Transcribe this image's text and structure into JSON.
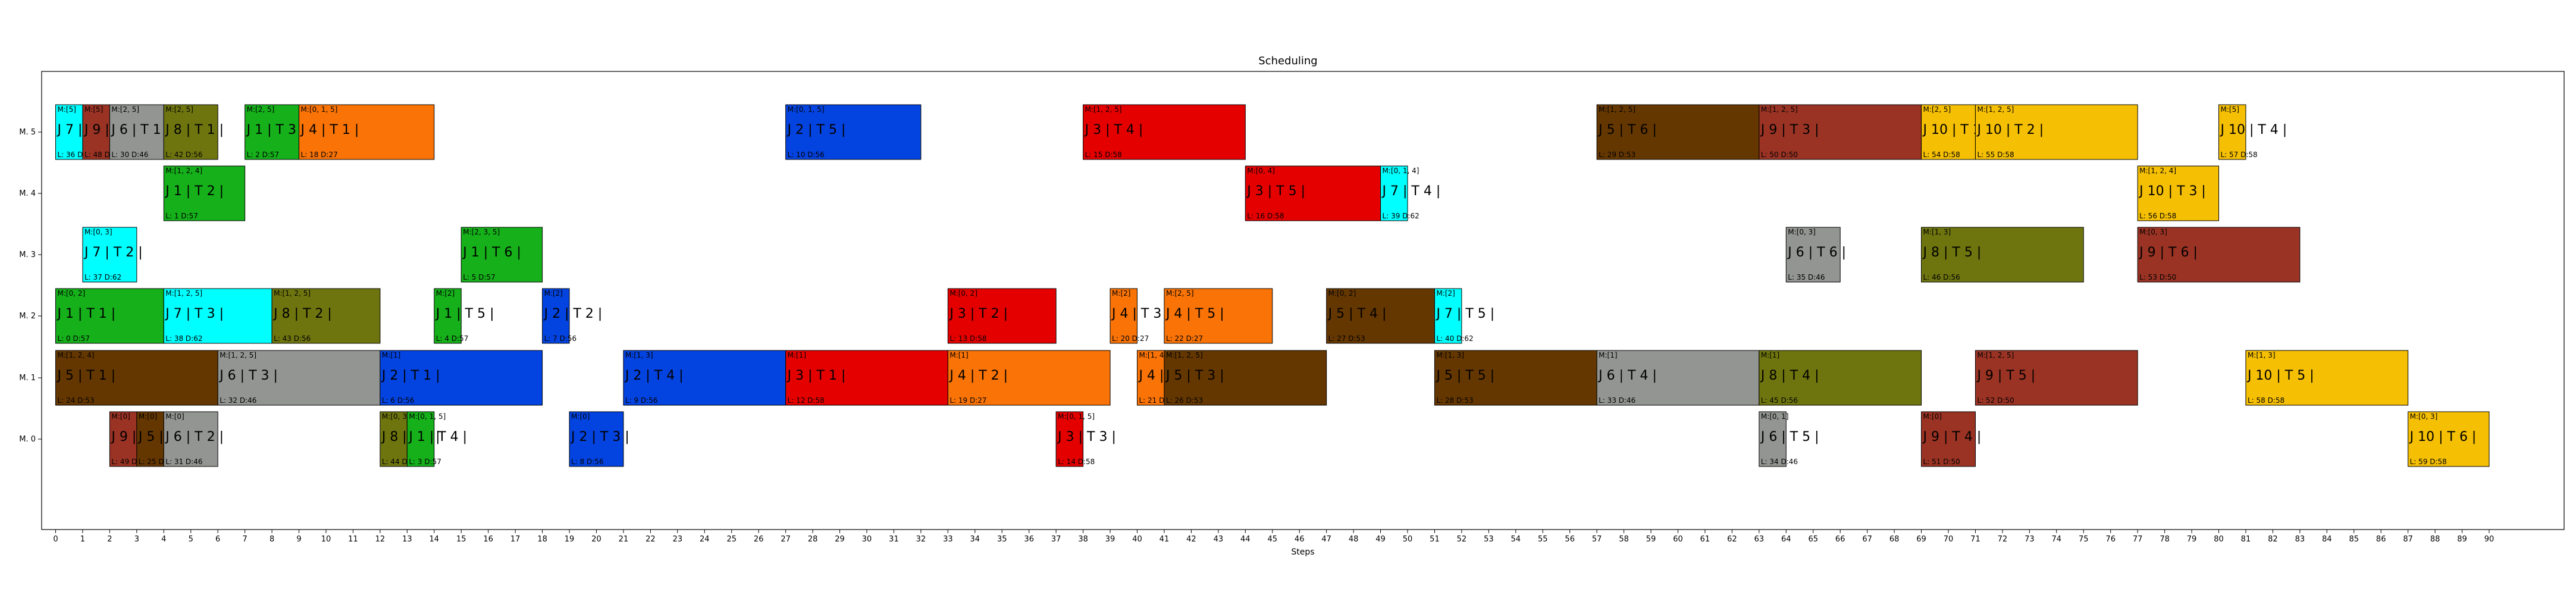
{
  "chart_data": {
    "type": "gantt",
    "title": "Scheduling",
    "xlabel": "Steps",
    "ylabel": "",
    "xlim": [
      -1,
      94
    ],
    "x_ticks": [
      0,
      1,
      2,
      3,
      4,
      5,
      6,
      7,
      8,
      9,
      10,
      11,
      12,
      13,
      14,
      15,
      16,
      17,
      18,
      19,
      20,
      21,
      22,
      23,
      24,
      25,
      26,
      27,
      28,
      29,
      30,
      31,
      32,
      33,
      34,
      35,
      36,
      37,
      38,
      39,
      40,
      41,
      42,
      43,
      44,
      45,
      46,
      47,
      48,
      49,
      50,
      51,
      52,
      53,
      54,
      55,
      56,
      57,
      58,
      59,
      60,
      61,
      62,
      63,
      64,
      65,
      66,
      67,
      68,
      69,
      70,
      71,
      72,
      73,
      74,
      75,
      76,
      77,
      78,
      79,
      80,
      81,
      82,
      83,
      84,
      85,
      86,
      87,
      88,
      89,
      90
    ],
    "machines": [
      "M. 5",
      "M. 4",
      "M. 3",
      "M. 2",
      "M. 1",
      "M. 0"
    ],
    "grid": false,
    "job_colors": {
      "J 1": "#15b01a",
      "J 2": "#0343df",
      "J 3": "#e50000",
      "J 4": "#f97306",
      "J 5": "#653700",
      "J 6": "#929591",
      "J 7": "#00ffff",
      "J 8": "#6e750e",
      "J 9": "#9a3324",
      "J 10": "#f5bf03"
    },
    "operations": [
      {
        "machine": "M. 5",
        "job": "J 7",
        "task": "T 1",
        "start": 0,
        "end": 1,
        "tag": "M:[5]",
        "meta": "L: 36 D:62"
      },
      {
        "machine": "M. 5",
        "job": "J 9",
        "task": "T 1",
        "start": 1,
        "end": 2,
        "tag": "M:[5]",
        "meta": "L: 48 D:50"
      },
      {
        "machine": "M. 5",
        "job": "J 6",
        "task": "T 1",
        "start": 2,
        "end": 4,
        "tag": "M:[2, 5]",
        "meta": "L: 30 D:46"
      },
      {
        "machine": "M. 5",
        "job": "J 8",
        "task": "T 1",
        "start": 4,
        "end": 6,
        "tag": "M:[2, 5]",
        "meta": "L: 42 D:56"
      },
      {
        "machine": "M. 5",
        "job": "J 1",
        "task": "T 3",
        "start": 7,
        "end": 9,
        "tag": "M:[2, 5]",
        "meta": "L: 2 D:57"
      },
      {
        "machine": "M. 5",
        "job": "J 4",
        "task": "T 1",
        "start": 9,
        "end": 14,
        "tag": "M:[0, 1, 5]",
        "meta": "L: 18 D:27"
      },
      {
        "machine": "M. 5",
        "job": "J 2",
        "task": "T 5",
        "start": 27,
        "end": 32,
        "tag": "M:[0, 1, 5]",
        "meta": "L: 10 D:56"
      },
      {
        "machine": "M. 5",
        "job": "J 3",
        "task": "T 4",
        "start": 38,
        "end": 44,
        "tag": "M:[1, 2, 5]",
        "meta": "L: 15 D:58"
      },
      {
        "machine": "M. 5",
        "job": "J 5",
        "task": "T 6",
        "start": 57,
        "end": 63,
        "tag": "M:[1, 2, 5]",
        "meta": "L: 29 D:53"
      },
      {
        "machine": "M. 5",
        "job": "J 9",
        "task": "T 3",
        "start": 63,
        "end": 69,
        "tag": "M:[1, 2, 5]",
        "meta": "L: 50 D:50"
      },
      {
        "machine": "M. 5",
        "job": "J 10",
        "task": "T 1",
        "start": 69,
        "end": 71,
        "tag": "M:[2, 5]",
        "meta": "L: 54 D:58"
      },
      {
        "machine": "M. 5",
        "job": "J 10",
        "task": "T 2",
        "start": 71,
        "end": 77,
        "tag": "M:[1, 2, 5]",
        "meta": "L: 55 D:58"
      },
      {
        "machine": "M. 5",
        "job": "J 10",
        "task": "T 4",
        "start": 80,
        "end": 81,
        "tag": "M:[5]",
        "meta": "L: 57 D:58"
      },
      {
        "machine": "M. 4",
        "job": "J 1",
        "task": "T 2",
        "start": 4,
        "end": 7,
        "tag": "M:[1, 2, 4]",
        "meta": "L: 1 D:57"
      },
      {
        "machine": "M. 4",
        "job": "J 3",
        "task": "T 5",
        "start": 44,
        "end": 49,
        "tag": "M:[0, 4]",
        "meta": "L: 16 D:58"
      },
      {
        "machine": "M. 4",
        "job": "J 7",
        "task": "T 4",
        "start": 49,
        "end": 50,
        "tag": "M:[0, 1, 4]",
        "meta": "L: 39 D:62"
      },
      {
        "machine": "M. 4",
        "job": "J 10",
        "task": "T 3",
        "start": 77,
        "end": 80,
        "tag": "M:[1, 2, 4]",
        "meta": "L: 56 D:58"
      },
      {
        "machine": "M. 3",
        "job": "J 7",
        "task": "T 2",
        "start": 1,
        "end": 3,
        "tag": "M:[0, 3]",
        "meta": "L: 37 D:62"
      },
      {
        "machine": "M. 3",
        "job": "J 1",
        "task": "T 6",
        "start": 15,
        "end": 18,
        "tag": "M:[2, 3, 5]",
        "meta": "L: 5 D:57"
      },
      {
        "machine": "M. 3",
        "job": "J 6",
        "task": "T 6",
        "start": 64,
        "end": 66,
        "tag": "M:[0, 3]",
        "meta": "L: 35 D:46"
      },
      {
        "machine": "M. 3",
        "job": "J 8",
        "task": "T 5",
        "start": 69,
        "end": 75,
        "tag": "M:[1, 3]",
        "meta": "L: 46 D:56"
      },
      {
        "machine": "M. 3",
        "job": "J 9",
        "task": "T 6",
        "start": 77,
        "end": 83,
        "tag": "M:[0, 3]",
        "meta": "L: 53 D:50"
      },
      {
        "machine": "M. 2",
        "job": "J 1",
        "task": "T 1",
        "start": 0,
        "end": 4,
        "tag": "M:[0, 2]",
        "meta": "L: 0 D:57"
      },
      {
        "machine": "M. 2",
        "job": "J 7",
        "task": "T 3",
        "start": 4,
        "end": 8,
        "tag": "M:[1, 2, 5]",
        "meta": "L: 38 D:62"
      },
      {
        "machine": "M. 2",
        "job": "J 8",
        "task": "T 2",
        "start": 8,
        "end": 12,
        "tag": "M:[1, 2, 5]",
        "meta": "L: 43 D:56"
      },
      {
        "machine": "M. 2",
        "job": "J 1",
        "task": "T 5",
        "start": 14,
        "end": 15,
        "tag": "M:[2]",
        "meta": "L: 4 D:57"
      },
      {
        "machine": "M. 2",
        "job": "J 2",
        "task": "T 2",
        "start": 18,
        "end": 19,
        "tag": "M:[2]",
        "meta": "L: 7 D:56"
      },
      {
        "machine": "M. 2",
        "job": "J 3",
        "task": "T 2",
        "start": 33,
        "end": 37,
        "tag": "M:[0, 2]",
        "meta": "L: 13 D:58"
      },
      {
        "machine": "M. 2",
        "job": "J 4",
        "task": "T 3",
        "start": 39,
        "end": 40,
        "tag": "M:[2]",
        "meta": "L: 20 D:27"
      },
      {
        "machine": "M. 2",
        "job": "J 4",
        "task": "T 5",
        "start": 41,
        "end": 45,
        "tag": "M:[2, 5]",
        "meta": "L: 22 D:27"
      },
      {
        "machine": "M. 2",
        "job": "J 5",
        "task": "T 4",
        "start": 47,
        "end": 51,
        "tag": "M:[0, 2]",
        "meta": "L: 27 D:53"
      },
      {
        "machine": "M. 2",
        "job": "J 7",
        "task": "T 5",
        "start": 51,
        "end": 52,
        "tag": "M:[2]",
        "meta": "L: 40 D:62"
      },
      {
        "machine": "M. 1",
        "job": "J 5",
        "task": "T 1",
        "start": 0,
        "end": 6,
        "tag": "M:[1, 2, 4]",
        "meta": "L: 24 D:53"
      },
      {
        "machine": "M. 1",
        "job": "J 6",
        "task": "T 3",
        "start": 6,
        "end": 12,
        "tag": "M:[1, 2, 5]",
        "meta": "L: 32 D:46"
      },
      {
        "machine": "M. 1",
        "job": "J 2",
        "task": "T 1",
        "start": 12,
        "end": 18,
        "tag": "M:[1]",
        "meta": "L: 6 D:56"
      },
      {
        "machine": "M. 1",
        "job": "J 2",
        "task": "T 4",
        "start": 21,
        "end": 27,
        "tag": "M:[1, 3]",
        "meta": "L: 9 D:56"
      },
      {
        "machine": "M. 1",
        "job": "J 3",
        "task": "T 1",
        "start": 27,
        "end": 33,
        "tag": "M:[1]",
        "meta": "L: 12 D:58"
      },
      {
        "machine": "M. 1",
        "job": "J 4",
        "task": "T 2",
        "start": 33,
        "end": 39,
        "tag": "M:[1]",
        "meta": "L: 19 D:27"
      },
      {
        "machine": "M. 1",
        "job": "J 4",
        "task": "T 4",
        "start": 40,
        "end": 41,
        "tag": "M:[1, 4]",
        "meta": "L: 21 D:27"
      },
      {
        "machine": "M. 1",
        "job": "J 5",
        "task": "T 3",
        "start": 41,
        "end": 47,
        "tag": "M:[1, 2, 5]",
        "meta": "L: 26 D:53"
      },
      {
        "machine": "M. 1",
        "job": "J 5",
        "task": "T 5",
        "start": 51,
        "end": 57,
        "tag": "M:[1, 3]",
        "meta": "L: 28 D:53"
      },
      {
        "machine": "M. 1",
        "job": "J 6",
        "task": "T 4",
        "start": 57,
        "end": 63,
        "tag": "M:[1]",
        "meta": "L: 33 D:46"
      },
      {
        "machine": "M. 1",
        "job": "J 8",
        "task": "T 4",
        "start": 63,
        "end": 69,
        "tag": "M:[1]",
        "meta": "L: 45 D:56"
      },
      {
        "machine": "M. 1",
        "job": "J 9",
        "task": "T 5",
        "start": 71,
        "end": 77,
        "tag": "M:[1, 2, 5]",
        "meta": "L: 52 D:50"
      },
      {
        "machine": "M. 1",
        "job": "J 10",
        "task": "T 5",
        "start": 81,
        "end": 87,
        "tag": "M:[1, 3]",
        "meta": "L: 58 D:58"
      },
      {
        "machine": "M. 0",
        "job": "J 9",
        "task": "T 2",
        "start": 2,
        "end": 3,
        "tag": "M:[0]",
        "meta": "L: 49 D:50"
      },
      {
        "machine": "M. 0",
        "job": "J 5",
        "task": "T 2",
        "start": 3,
        "end": 4,
        "tag": "M:[0]",
        "meta": "L: 25 D:53"
      },
      {
        "machine": "M. 0",
        "job": "J 6",
        "task": "T 2",
        "start": 4,
        "end": 6,
        "tag": "M:[0]",
        "meta": "L: 31 D:46"
      },
      {
        "machine": "M. 0",
        "job": "J 8",
        "task": "T 3",
        "start": 12,
        "end": 13,
        "tag": "M:[0, 3]",
        "meta": "L: 44 D:56"
      },
      {
        "machine": "M. 0",
        "job": "J 1",
        "task": "T 4",
        "start": 13,
        "end": 14,
        "tag": "M:[0, 1, 5]",
        "meta": "L: 3 D:57"
      },
      {
        "machine": "M. 0",
        "job": "J 2",
        "task": "T 3",
        "start": 19,
        "end": 21,
        "tag": "M:[0]",
        "meta": "L: 8 D:56"
      },
      {
        "machine": "M. 0",
        "job": "J 3",
        "task": "T 3",
        "start": 37,
        "end": 38,
        "tag": "M:[0, 1, 5]",
        "meta": "L: 14 D:58"
      },
      {
        "machine": "M. 0",
        "job": "J 6",
        "task": "T 5",
        "start": 63,
        "end": 64,
        "tag": "M:[0, 1]",
        "meta": "L: 34 D:46"
      },
      {
        "machine": "M. 0",
        "job": "J 9",
        "task": "T 4",
        "start": 69,
        "end": 71,
        "tag": "M:[0]",
        "meta": "L: 51 D:50"
      },
      {
        "machine": "M. 0",
        "job": "J 10",
        "task": "T 6",
        "start": 87,
        "end": 90,
        "tag": "M:[0, 3]",
        "meta": "L: 59 D:58"
      }
    ]
  }
}
